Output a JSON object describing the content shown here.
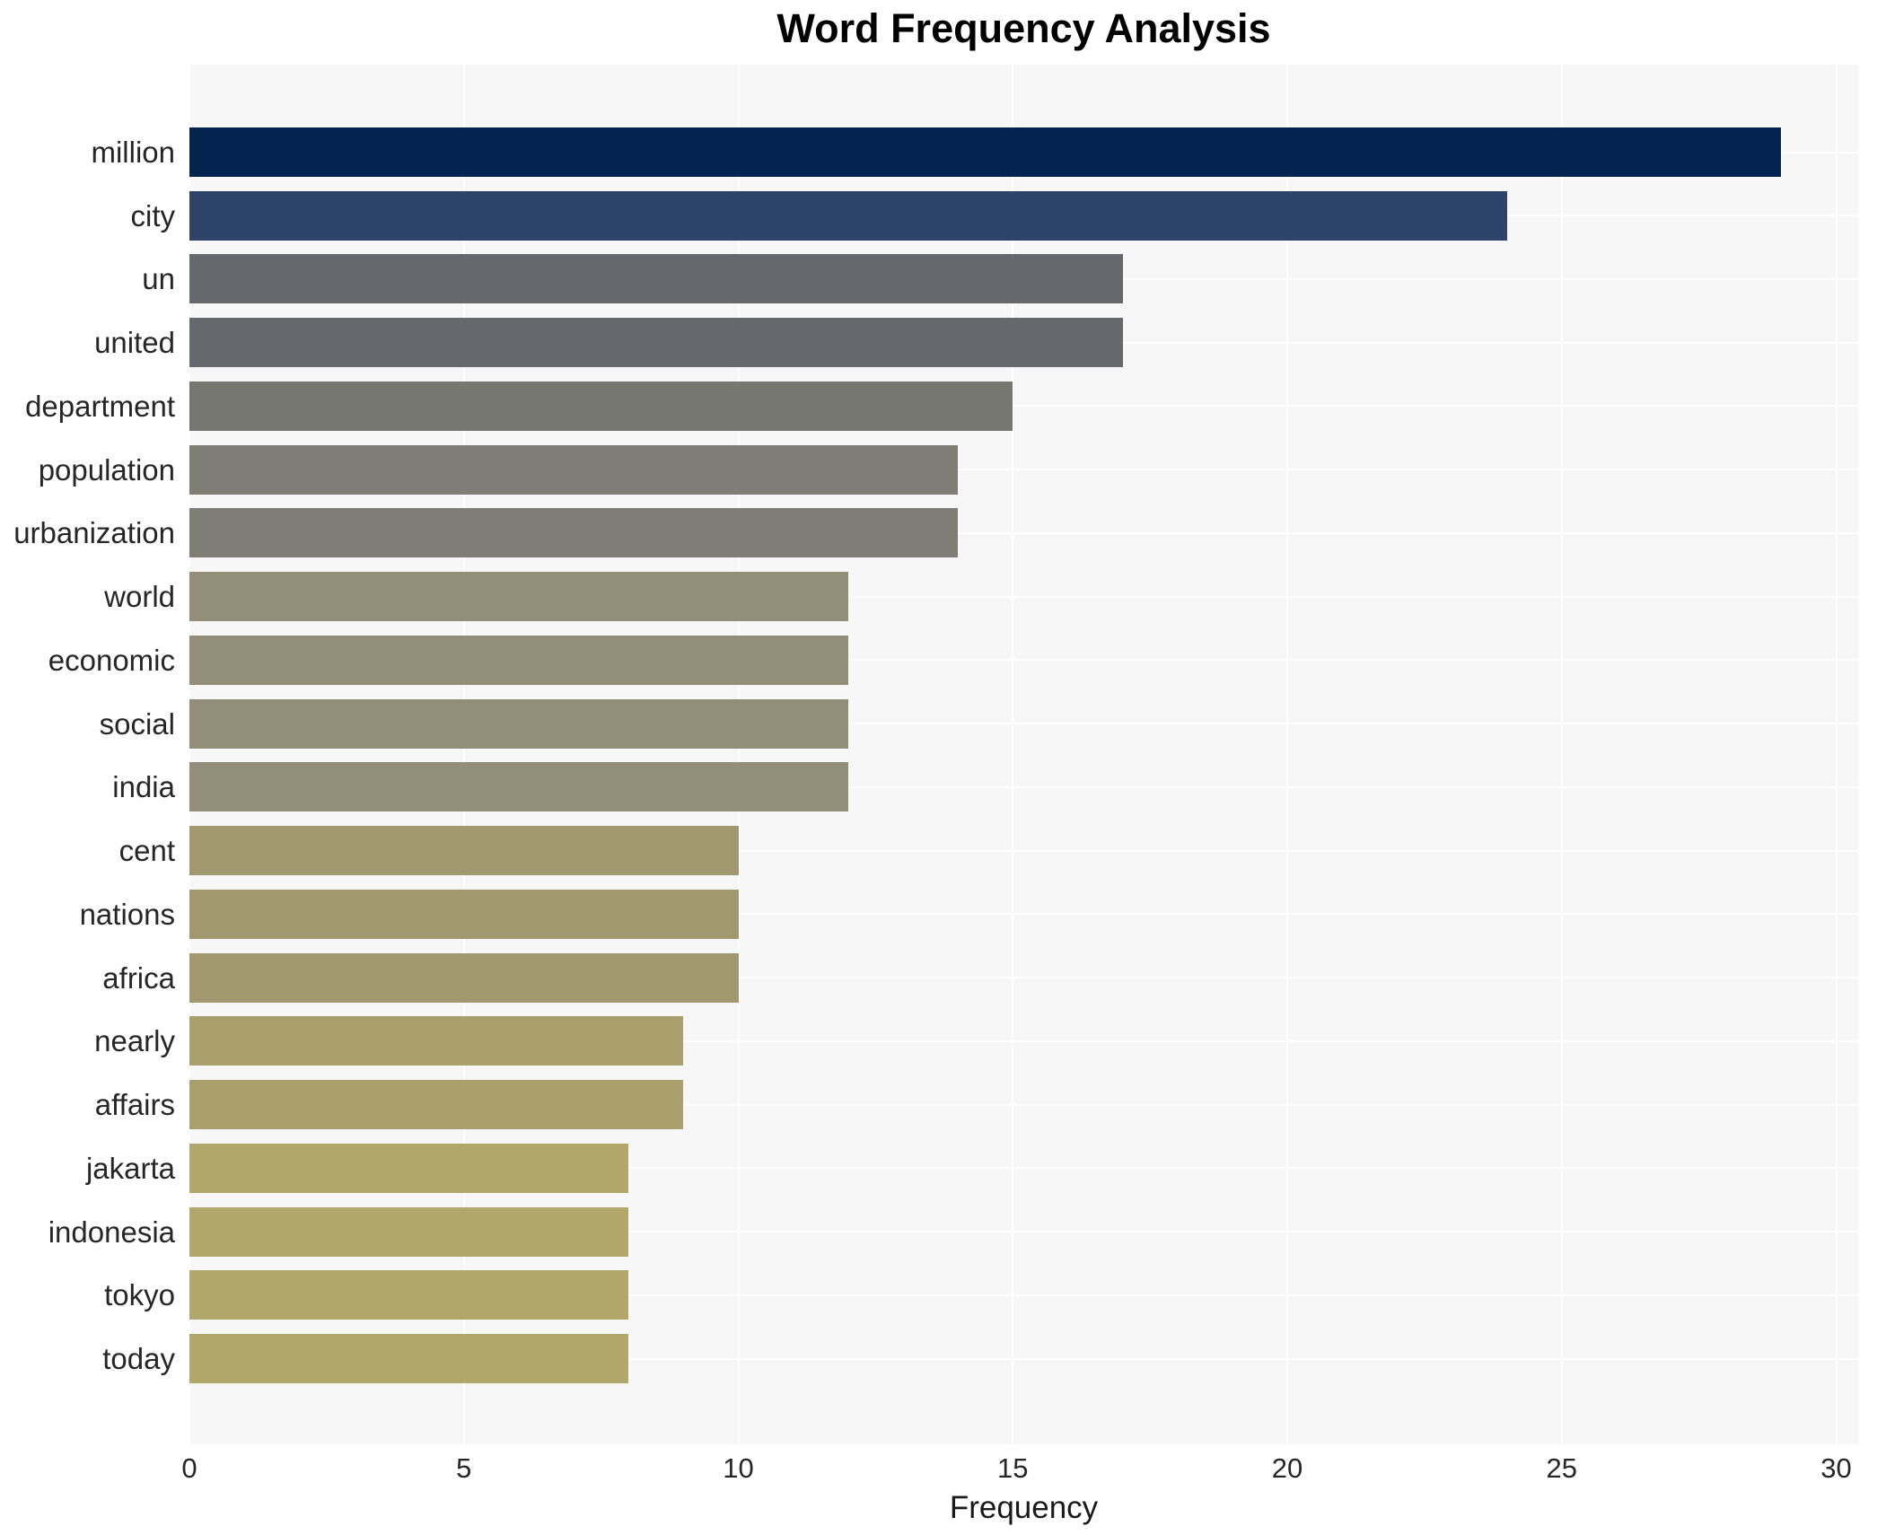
{
  "title": "Word Frequency Analysis",
  "xlabel": "Frequency",
  "chart_data": {
    "type": "bar",
    "orientation": "horizontal",
    "title": "Word Frequency Analysis",
    "xlabel": "Frequency",
    "ylabel": "",
    "categories": [
      "million",
      "city",
      "un",
      "united",
      "department",
      "population",
      "urbanization",
      "world",
      "economic",
      "social",
      "india",
      "cent",
      "nations",
      "africa",
      "nearly",
      "affairs",
      "jakarta",
      "indonesia",
      "tokyo",
      "today"
    ],
    "values": [
      29,
      24,
      17,
      17,
      15,
      14,
      14,
      12,
      12,
      12,
      12,
      10,
      10,
      10,
      9,
      9,
      8,
      8,
      8,
      8
    ],
    "bar_colors": [
      "#04234e",
      "#2e4368",
      "#66686e",
      "#66686e",
      "#777771",
      "#7e7e76",
      "#7e7e76",
      "#938e79",
      "#938e79",
      "#938e79",
      "#938e79",
      "#a19870",
      "#a19870",
      "#a19870",
      "#a9a06e",
      "#a9a06e",
      "#b1a76b",
      "#b1a76b",
      "#b1a76b",
      "#b1a76b"
    ],
    "xticks": [
      0,
      5,
      10,
      15,
      20,
      25,
      30
    ],
    "xlim": [
      0,
      30.4
    ],
    "grid": "on",
    "gridline_color": "#ffffff",
    "panel_background": "#f7f7f8",
    "figure_background": "#ffffff",
    "legend": "none"
  }
}
